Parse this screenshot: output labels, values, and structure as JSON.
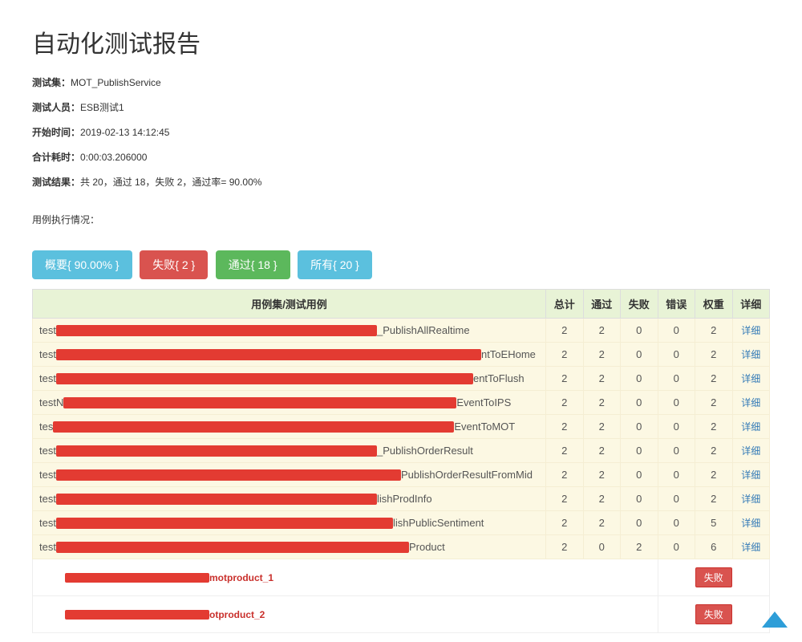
{
  "title": "自动化测试报告",
  "meta": {
    "suite_label": "测试集：",
    "suite_value": "MOT_PublishService",
    "tester_label": "测试人员：",
    "tester_value": "ESB测试1",
    "start_label": "开始时间：",
    "start_value": "2019-02-13 14:12:45",
    "duration_label": "合计耗时：",
    "duration_value": "0:00:03.206000",
    "result_label": "测试结果：",
    "result_value": "共 20，通过 18，失败 2，通过率= 90.00%"
  },
  "exec_label": "用例执行情况：",
  "tabs": {
    "summary": "概要{ 90.00% }",
    "fail": "失败{ 2 }",
    "pass": "通过{ 18 }",
    "all": "所有{ 20 }"
  },
  "columns": {
    "name": "用例集/测试用例",
    "total": "总计",
    "pass": "通过",
    "fail": "失败",
    "error": "错误",
    "weight": "权重",
    "detail": "详细"
  },
  "detail_link_text": "详细",
  "fail_badge_text": "失败",
  "rows": [
    {
      "prefix": "test",
      "redact_w": 400,
      "suffix": "_PublishAllRealtime",
      "total": 2,
      "pass": 2,
      "fail": 0,
      "error": 0,
      "weight": "2"
    },
    {
      "prefix": "test",
      "redact_w": 530,
      "suffix": "ntToEHome",
      "total": 2,
      "pass": 2,
      "fail": 0,
      "error": 0,
      "weight": "2"
    },
    {
      "prefix": "test",
      "redact_w": 520,
      "suffix": "entToFlush",
      "total": 2,
      "pass": 2,
      "fail": 0,
      "error": 0,
      "weight": "2"
    },
    {
      "prefix": "testN",
      "redact_w": 490,
      "suffix": "EventToIPS",
      "total": 2,
      "pass": 2,
      "fail": 0,
      "error": 0,
      "weight": "2"
    },
    {
      "prefix": "tes",
      "redact_w": 500,
      "suffix": "EventToMOT",
      "total": 2,
      "pass": 2,
      "fail": 0,
      "error": 0,
      "weight": "2"
    },
    {
      "prefix": "test",
      "redact_w": 400,
      "suffix": "_PublishOrderResult",
      "total": 2,
      "pass": 2,
      "fail": 0,
      "error": 0,
      "weight": "2"
    },
    {
      "prefix": "test",
      "redact_w": 430,
      "suffix": "PublishOrderResultFromMid",
      "total": 2,
      "pass": 2,
      "fail": 0,
      "error": 0,
      "weight": "2"
    },
    {
      "prefix": "test",
      "redact_w": 400,
      "suffix": "lishProdInfo",
      "total": 2,
      "pass": 2,
      "fail": 0,
      "error": 0,
      "weight": "2"
    },
    {
      "prefix": "test",
      "redact_w": 420,
      "suffix": "lishPublicSentiment",
      "total": 2,
      "pass": 2,
      "fail": 0,
      "error": 0,
      "weight": "5"
    },
    {
      "prefix": "test",
      "redact_w": 440,
      "suffix": "Product",
      "total": 2,
      "pass": 0,
      "fail": 2,
      "error": 0,
      "weight": "6"
    }
  ],
  "sub_rows": [
    {
      "redact_w": 180,
      "suffix": "motproduct_1"
    },
    {
      "redact_w": 180,
      "suffix": "otproduct_2"
    }
  ],
  "colors": {
    "header_bg": "#e8f3d6",
    "row_bg": "#fcf8e3",
    "tab_info": "#5bc0de",
    "tab_fail": "#d9534f",
    "tab_pass": "#5cb85c",
    "redact": "#e33b32",
    "link": "#337ab7"
  }
}
